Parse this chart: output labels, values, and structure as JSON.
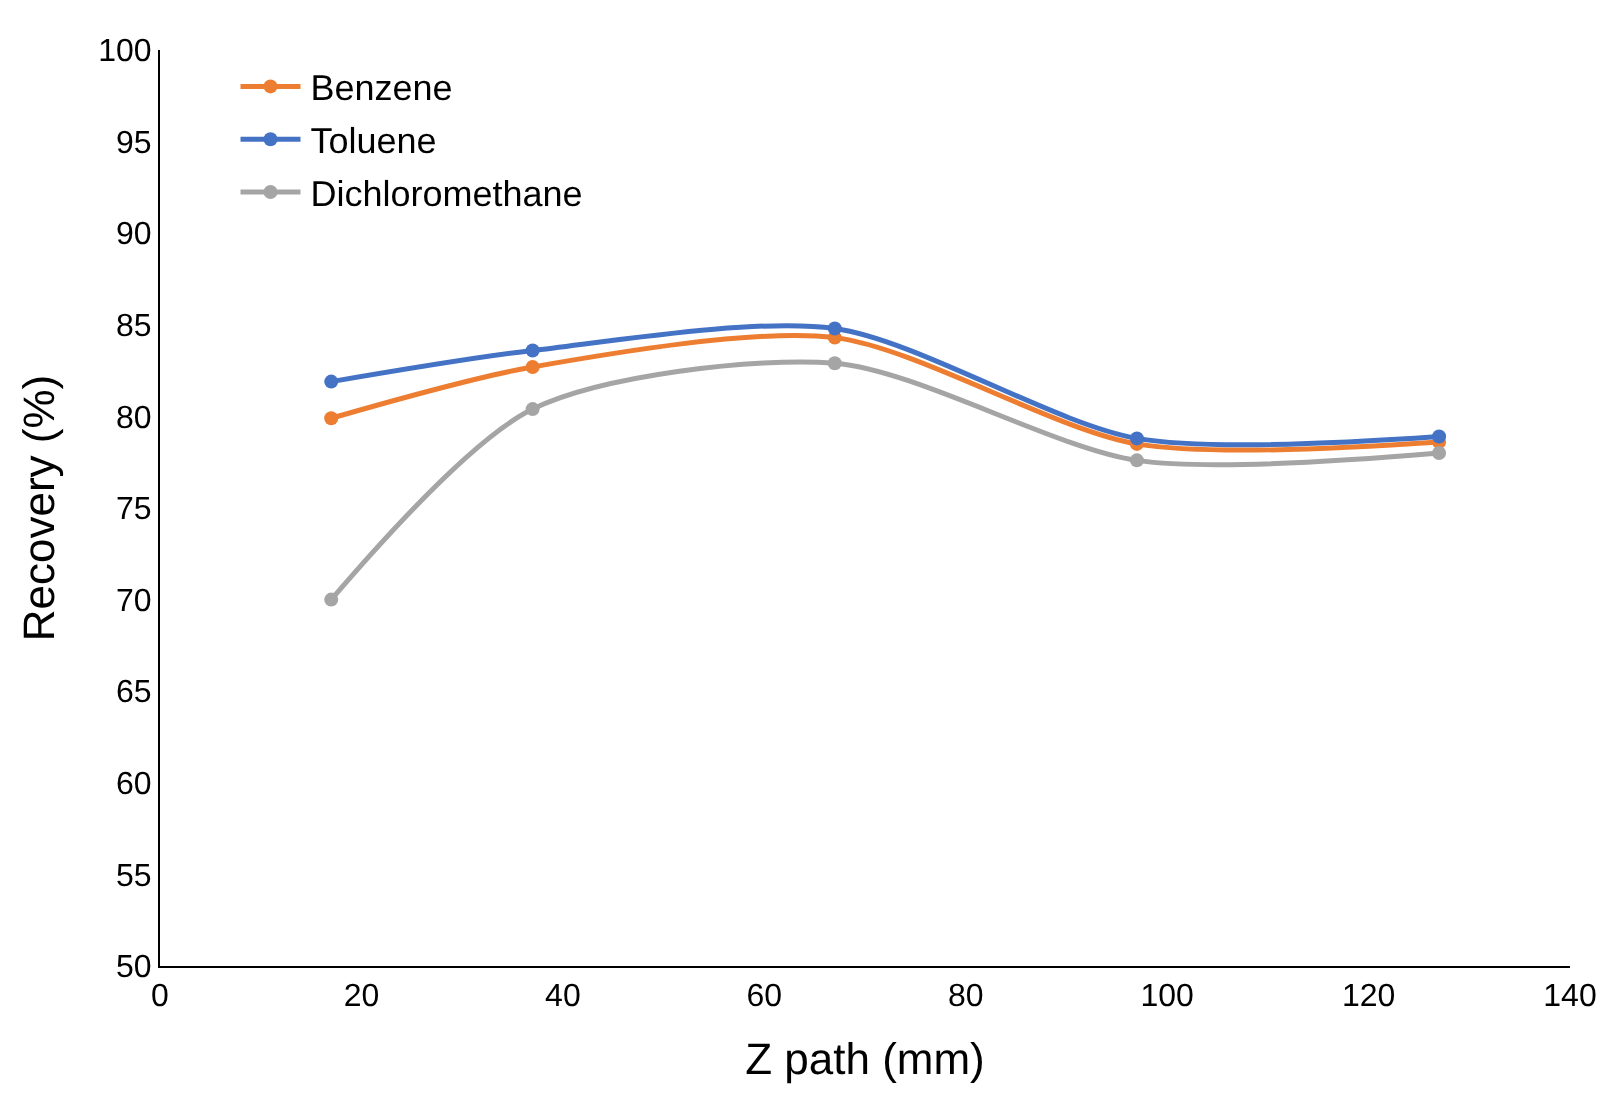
{
  "chart_data": {
    "type": "line",
    "xlabel": "Z path (mm)",
    "ylabel": "Recovery (%)",
    "x": [
      17,
      37,
      67,
      97,
      127
    ],
    "series": [
      {
        "name": "Benzene",
        "color": "#ed7d31",
        "values": [
          79.9,
          82.7,
          84.3,
          78.5,
          78.6
        ]
      },
      {
        "name": "Toluene",
        "color": "#4472c4",
        "values": [
          81.9,
          83.6,
          84.8,
          78.8,
          78.9
        ]
      },
      {
        "name": "Dichloromethane",
        "color": "#a5a5a5",
        "values": [
          70.0,
          80.4,
          82.9,
          77.6,
          78.0
        ]
      }
    ],
    "xlim": [
      0,
      140
    ],
    "xticks": [
      0,
      20,
      40,
      60,
      80,
      100,
      120,
      140
    ],
    "ylim": [
      50,
      100
    ],
    "yticks": [
      50,
      55,
      60,
      65,
      70,
      75,
      80,
      85,
      90,
      95,
      100
    ],
    "legend": "top left",
    "marker": "circle",
    "line_style": "solid"
  }
}
